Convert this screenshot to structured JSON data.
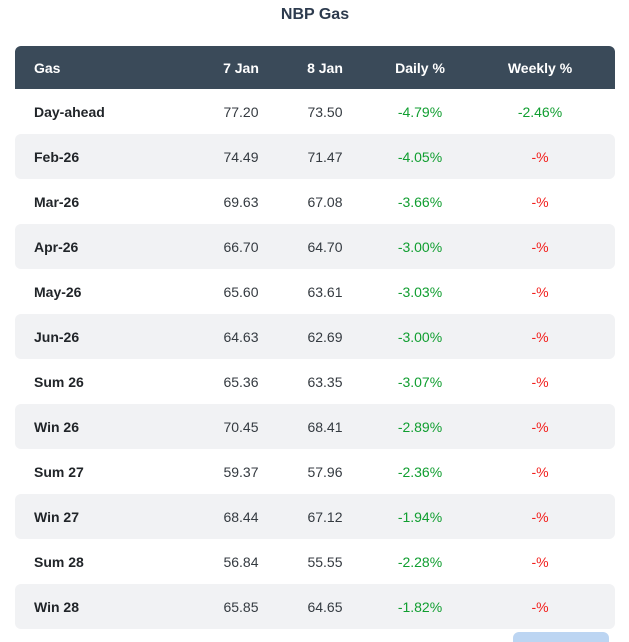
{
  "title": "NBP Gas",
  "colors": {
    "header_background": "#3a4a59",
    "header_text": "#ffffff",
    "stripe_background": "#f1f2f4",
    "positive_green": "#109e30",
    "negative_red": "#f2201d",
    "title_text": "#2d3b4e",
    "partial_bottom_element_blue": "#bcd5f2"
  },
  "table": {
    "columns": [
      "Gas",
      "7 Jan",
      "8 Jan",
      "Daily %",
      "Weekly %"
    ],
    "rows": [
      {
        "gas": "Day-ahead",
        "jan7": "77.20",
        "jan8": "73.50",
        "daily_pct": "-4.79%",
        "weekly_pct": "-2.46%",
        "daily_tone": "green",
        "weekly_tone": "green"
      },
      {
        "gas": "Feb-26",
        "jan7": "74.49",
        "jan8": "71.47",
        "daily_pct": "-4.05%",
        "weekly_pct": "-%",
        "daily_tone": "green",
        "weekly_tone": "red"
      },
      {
        "gas": "Mar-26",
        "jan7": "69.63",
        "jan8": "67.08",
        "daily_pct": "-3.66%",
        "weekly_pct": "-%",
        "daily_tone": "green",
        "weekly_tone": "red"
      },
      {
        "gas": "Apr-26",
        "jan7": "66.70",
        "jan8": "64.70",
        "daily_pct": "-3.00%",
        "weekly_pct": "-%",
        "daily_tone": "green",
        "weekly_tone": "red"
      },
      {
        "gas": "May-26",
        "jan7": "65.60",
        "jan8": "63.61",
        "daily_pct": "-3.03%",
        "weekly_pct": "-%",
        "daily_tone": "green",
        "weekly_tone": "red"
      },
      {
        "gas": "Jun-26",
        "jan7": "64.63",
        "jan8": "62.69",
        "daily_pct": "-3.00%",
        "weekly_pct": "-%",
        "daily_tone": "green",
        "weekly_tone": "red"
      },
      {
        "gas": "Sum 26",
        "jan7": "65.36",
        "jan8": "63.35",
        "daily_pct": "-3.07%",
        "weekly_pct": "-%",
        "daily_tone": "green",
        "weekly_tone": "red"
      },
      {
        "gas": "Win 26",
        "jan7": "70.45",
        "jan8": "68.41",
        "daily_pct": "-2.89%",
        "weekly_pct": "-%",
        "daily_tone": "green",
        "weekly_tone": "red"
      },
      {
        "gas": "Sum 27",
        "jan7": "59.37",
        "jan8": "57.96",
        "daily_pct": "-2.36%",
        "weekly_pct": "-%",
        "daily_tone": "green",
        "weekly_tone": "red"
      },
      {
        "gas": "Win 27",
        "jan7": "68.44",
        "jan8": "67.12",
        "daily_pct": "-1.94%",
        "weekly_pct": "-%",
        "daily_tone": "green",
        "weekly_tone": "red"
      },
      {
        "gas": "Sum 28",
        "jan7": "56.84",
        "jan8": "55.55",
        "daily_pct": "-2.28%",
        "weekly_pct": "-%",
        "daily_tone": "green",
        "weekly_tone": "red"
      },
      {
        "gas": "Win 28",
        "jan7": "65.85",
        "jan8": "64.65",
        "daily_pct": "-1.82%",
        "weekly_pct": "-%",
        "daily_tone": "green",
        "weekly_tone": "red"
      }
    ]
  },
  "chart_data": {
    "type": "table",
    "title": "NBP Gas",
    "columns": [
      "Gas",
      "7 Jan",
      "8 Jan",
      "Daily %",
      "Weekly %"
    ],
    "rows": [
      [
        "Day-ahead",
        77.2,
        73.5,
        -4.79,
        -2.46
      ],
      [
        "Feb-26",
        74.49,
        71.47,
        -4.05,
        null
      ],
      [
        "Mar-26",
        69.63,
        67.08,
        -3.66,
        null
      ],
      [
        "Apr-26",
        66.7,
        64.7,
        -3.0,
        null
      ],
      [
        "May-26",
        65.6,
        63.61,
        -3.03,
        null
      ],
      [
        "Jun-26",
        64.63,
        62.69,
        -3.0,
        null
      ],
      [
        "Sum 26",
        65.36,
        63.35,
        -3.07,
        null
      ],
      [
        "Win 26",
        70.45,
        68.41,
        -2.89,
        null
      ],
      [
        "Sum 27",
        59.37,
        57.96,
        -2.36,
        null
      ],
      [
        "Win 27",
        68.44,
        67.12,
        -1.94,
        null
      ],
      [
        "Sum 28",
        56.84,
        55.55,
        -2.28,
        null
      ],
      [
        "Win 28",
        65.85,
        64.65,
        -1.82,
        null
      ]
    ],
    "notes": "Daily % values rendered in green; missing Weekly % values rendered as '-%' in red; Weekly % for Day-ahead rendered in green."
  }
}
